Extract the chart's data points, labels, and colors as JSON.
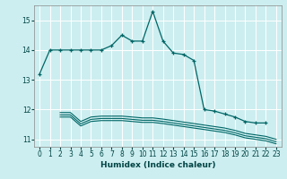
{
  "xlabel": "Humidex (Indice chaleur)",
  "bg_color": "#cdeef0",
  "line_color": "#006666",
  "grid_color": "#ffffff",
  "xlim": [
    -0.5,
    23.5
  ],
  "ylim": [
    10.75,
    15.5
  ],
  "xticks": [
    0,
    1,
    2,
    3,
    4,
    5,
    6,
    7,
    8,
    9,
    10,
    11,
    12,
    13,
    14,
    15,
    16,
    17,
    18,
    19,
    20,
    21,
    22,
    23
  ],
  "yticks": [
    11,
    12,
    13,
    14,
    15
  ],
  "line1_x": [
    0,
    1,
    2,
    3,
    4,
    5,
    6,
    7,
    8,
    9,
    10,
    11,
    12,
    13,
    14,
    15,
    16,
    17,
    18,
    19,
    20,
    21,
    22
  ],
  "line1_y": [
    13.2,
    14.0,
    14.0,
    14.0,
    14.0,
    14.0,
    14.0,
    14.15,
    14.5,
    14.3,
    14.3,
    15.3,
    14.3,
    13.9,
    13.85,
    13.65,
    12.0,
    11.95,
    11.85,
    11.75,
    11.6,
    11.55,
    11.55
  ],
  "line2_x": [
    2,
    3,
    4,
    5,
    6,
    7,
    8,
    9,
    10,
    11,
    12,
    13,
    14,
    15,
    16,
    17,
    18,
    19,
    20,
    21,
    22,
    23
  ],
  "line2_y": [
    11.9,
    11.9,
    11.6,
    11.75,
    11.78,
    11.78,
    11.78,
    11.75,
    11.72,
    11.72,
    11.68,
    11.63,
    11.58,
    11.53,
    11.48,
    11.43,
    11.38,
    11.3,
    11.2,
    11.15,
    11.1,
    11.0
  ],
  "line3_x": [
    2,
    3,
    4,
    5,
    6,
    7,
    8,
    9,
    10,
    11,
    12,
    13,
    14,
    15,
    16,
    17,
    18,
    19,
    20,
    21,
    22,
    23
  ],
  "line3_y": [
    11.82,
    11.82,
    11.52,
    11.67,
    11.7,
    11.7,
    11.7,
    11.67,
    11.64,
    11.64,
    11.6,
    11.55,
    11.5,
    11.45,
    11.4,
    11.35,
    11.3,
    11.22,
    11.12,
    11.07,
    11.02,
    10.92
  ],
  "line4_x": [
    2,
    3,
    4,
    5,
    6,
    7,
    8,
    9,
    10,
    11,
    12,
    13,
    14,
    15,
    16,
    17,
    18,
    19,
    20,
    21,
    22,
    23
  ],
  "line4_y": [
    11.75,
    11.75,
    11.45,
    11.6,
    11.63,
    11.63,
    11.63,
    11.6,
    11.57,
    11.57,
    11.53,
    11.48,
    11.43,
    11.38,
    11.33,
    11.28,
    11.23,
    11.15,
    11.05,
    11.0,
    10.95,
    10.85
  ]
}
